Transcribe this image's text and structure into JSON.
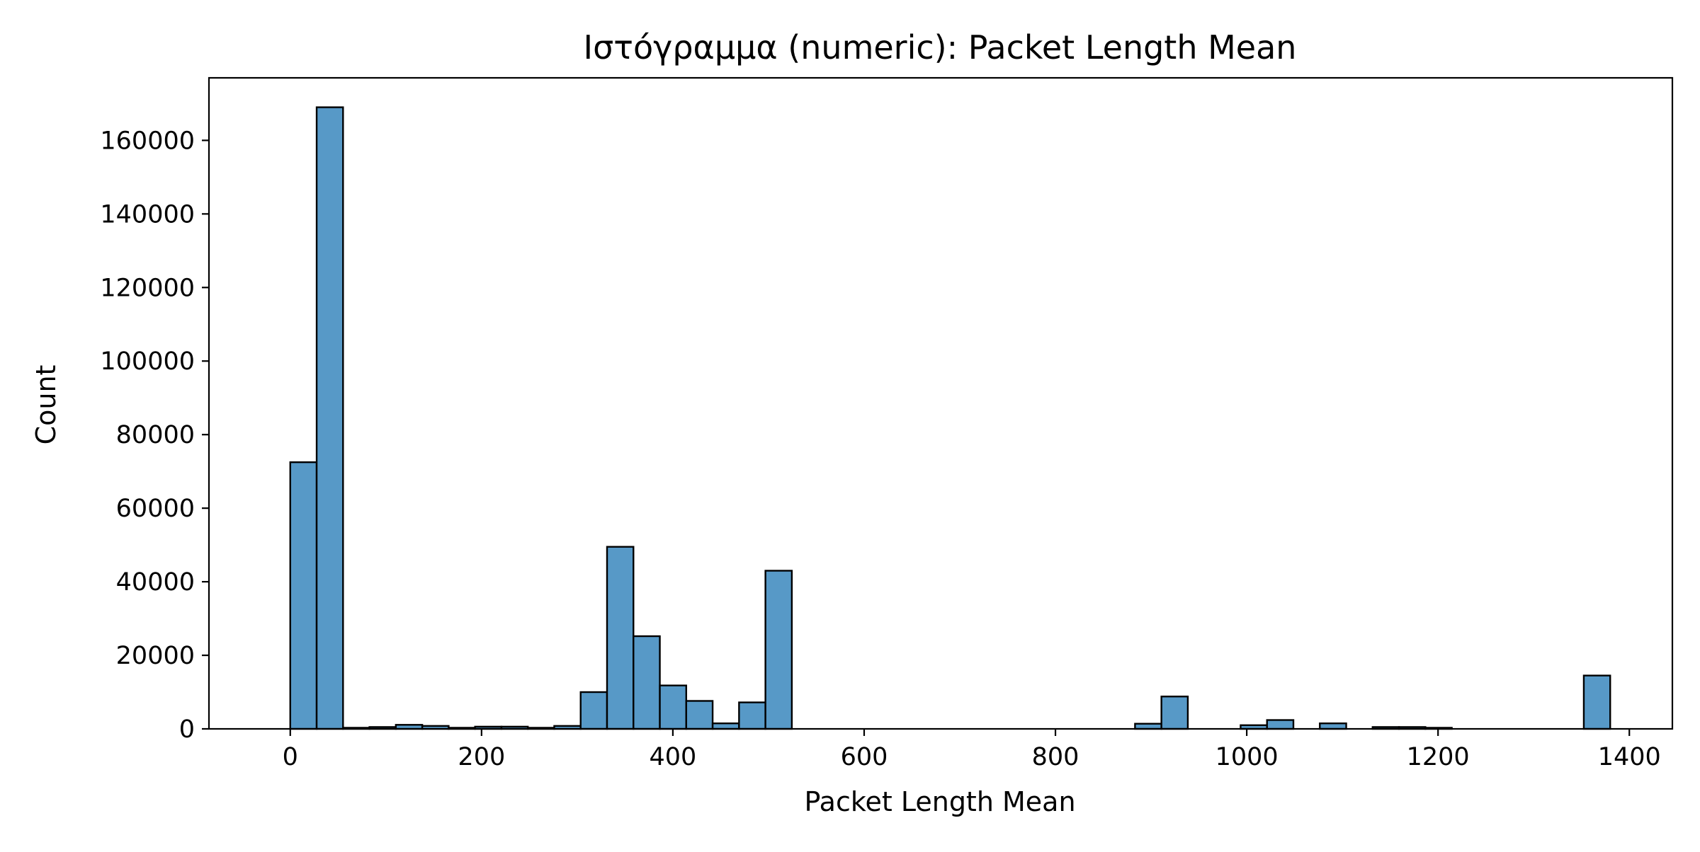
{
  "chart_data": {
    "type": "bar",
    "title": "Ιστόγραμμα (numeric): Packet Length Mean",
    "xlabel": "Packet Length Mean",
    "ylabel": "Count",
    "xlim": [
      -85,
      1445
    ],
    "ylim": [
      0,
      177000
    ],
    "xticks": [
      0,
      200,
      400,
      600,
      800,
      1000,
      1200,
      1400
    ],
    "yticks": [
      0,
      20000,
      40000,
      60000,
      80000,
      100000,
      120000,
      140000,
      160000
    ],
    "bin_width": 27.6,
    "bins": [
      {
        "start": 0.0,
        "count": 72500
      },
      {
        "start": 27.6,
        "count": 169000
      },
      {
        "start": 55.2,
        "count": 300
      },
      {
        "start": 82.8,
        "count": 500
      },
      {
        "start": 110.4,
        "count": 1100
      },
      {
        "start": 138.0,
        "count": 800
      },
      {
        "start": 165.6,
        "count": 300
      },
      {
        "start": 193.2,
        "count": 600
      },
      {
        "start": 220.8,
        "count": 600
      },
      {
        "start": 248.4,
        "count": 300
      },
      {
        "start": 276.0,
        "count": 800
      },
      {
        "start": 303.6,
        "count": 10000
      },
      {
        "start": 331.2,
        "count": 49500
      },
      {
        "start": 358.8,
        "count": 25200
      },
      {
        "start": 386.4,
        "count": 11800
      },
      {
        "start": 414.0,
        "count": 7600
      },
      {
        "start": 441.6,
        "count": 1500
      },
      {
        "start": 469.2,
        "count": 7200
      },
      {
        "start": 496.8,
        "count": 43000
      },
      {
        "start": 883.2,
        "count": 1400
      },
      {
        "start": 910.8,
        "count": 8800
      },
      {
        "start": 993.6,
        "count": 1000
      },
      {
        "start": 1021.2,
        "count": 2400
      },
      {
        "start": 1076.4,
        "count": 1500
      },
      {
        "start": 1131.6,
        "count": 500
      },
      {
        "start": 1159.2,
        "count": 500
      },
      {
        "start": 1186.8,
        "count": 300
      },
      {
        "start": 1352.4,
        "count": 14500
      }
    ],
    "grid": false,
    "legend": "none",
    "colors": {
      "bar_fill": "#5799c7",
      "bar_edge": "#000000"
    }
  }
}
